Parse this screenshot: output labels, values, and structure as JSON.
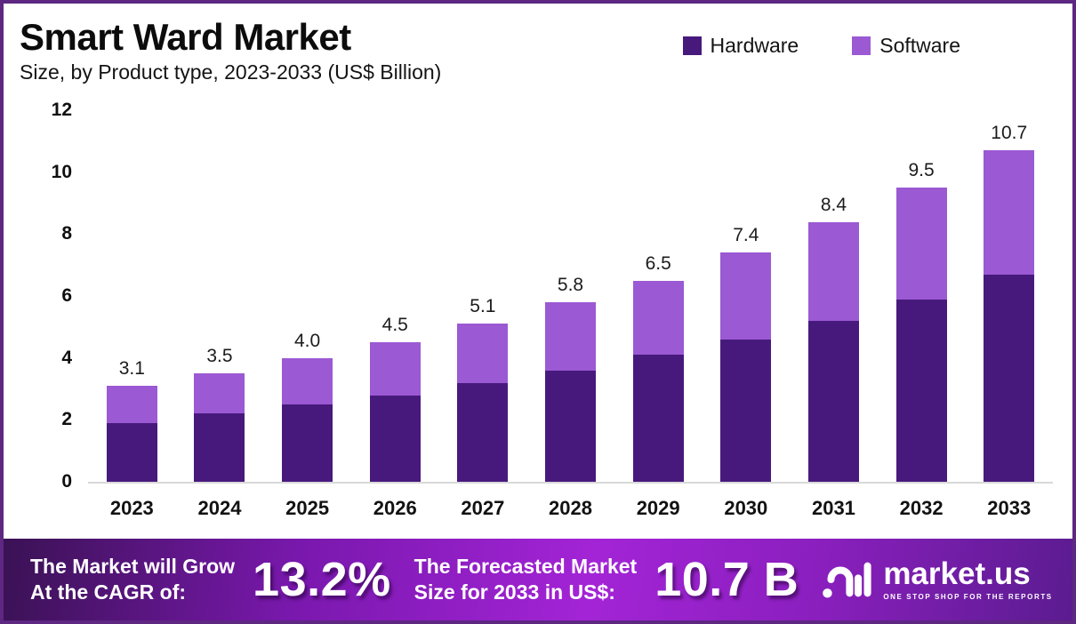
{
  "header": {
    "title": "Smart Ward Market",
    "subtitle": "Size, by Product type, 2023-2033 (US$ Billion)"
  },
  "legend": {
    "items": [
      {
        "label": "Hardware",
        "color": "#48197D"
      },
      {
        "label": "Software",
        "color": "#9B59D3"
      }
    ]
  },
  "chart_data": {
    "type": "bar",
    "stacked": true,
    "title": "Smart Ward Market",
    "subtitle": "Size, by Product type, 2023-2033 (US$ Billion)",
    "unit": "US$ Billion",
    "categories": [
      "2023",
      "2024",
      "2025",
      "2026",
      "2027",
      "2028",
      "2029",
      "2030",
      "2031",
      "2032",
      "2033"
    ],
    "series": [
      {
        "name": "Hardware",
        "color": "#48197D",
        "values": [
          1.9,
          2.2,
          2.5,
          2.8,
          3.2,
          3.6,
          4.1,
          4.6,
          5.2,
          5.9,
          6.7
        ]
      },
      {
        "name": "Software",
        "color": "#9B59D3",
        "values": [
          1.2,
          1.3,
          1.5,
          1.7,
          1.9,
          2.2,
          2.4,
          2.8,
          3.2,
          3.6,
          4.0
        ]
      }
    ],
    "totals": [
      3.1,
      3.5,
      4.0,
      4.5,
      5.1,
      5.8,
      6.5,
      7.4,
      8.4,
      9.5,
      10.7
    ],
    "total_labels": [
      "3.1",
      "3.5",
      "4.0",
      "4.5",
      "5.1",
      "5.8",
      "6.5",
      "7.4",
      "8.4",
      "9.5",
      "10.7"
    ],
    "ylim": [
      0,
      12
    ],
    "yticks": [
      12,
      10,
      8,
      6,
      4,
      2,
      0
    ],
    "grid": false,
    "legend_position": "top-right"
  },
  "footer": {
    "growth_label_line1": "The Market will Grow",
    "growth_label_line2": "At the CAGR of:",
    "cagr_value": "13.2%",
    "forecast_label_line1": "The Forecasted Market",
    "forecast_label_line2": "Size for 2033 in US$:",
    "forecast_value": "10.7 B",
    "logo_text": "market.us",
    "logo_tagline": "ONE STOP SHOP FOR THE REPORTS"
  },
  "colors": {
    "border": "#5E2782",
    "hardware": "#48197D",
    "software": "#9B59D3",
    "axis_line": "#d8d8d8",
    "footer_gradient": [
      "#3A1254",
      "#A324D6",
      "#5B1C90"
    ],
    "text": "#0c0c0c"
  }
}
